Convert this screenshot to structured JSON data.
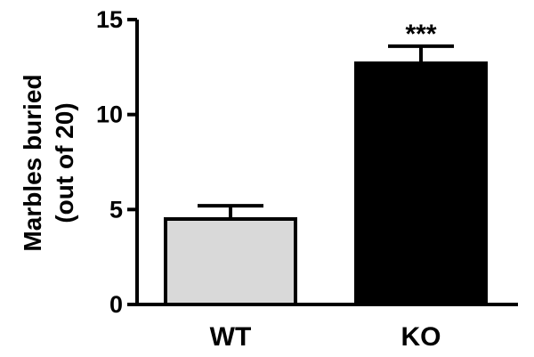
{
  "chart_data": {
    "type": "bar",
    "ylabel_line1": "Marbles buried",
    "ylabel_line2": "(out of 20)",
    "categories": [
      "WT",
      "KO"
    ],
    "values": [
      4.5,
      12.7
    ],
    "error_upper": [
      0.7,
      0.9
    ],
    "annotations": [
      "",
      "***"
    ],
    "bar_fill_colors": [
      "#d9d9d9",
      "#000000"
    ],
    "ylim": [
      0,
      15
    ],
    "yticks": [
      0,
      5,
      10,
      15
    ],
    "ytick_labels": [
      "0",
      "5",
      "10",
      "15"
    ],
    "grid": false,
    "legend": "none"
  }
}
